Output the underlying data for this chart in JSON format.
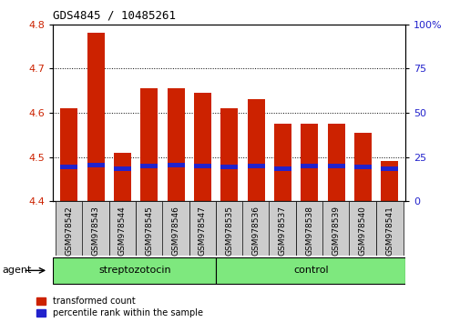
{
  "title": "GDS4845 / 10485261",
  "samples": [
    "GSM978542",
    "GSM978543",
    "GSM978544",
    "GSM978545",
    "GSM978546",
    "GSM978547",
    "GSM978535",
    "GSM978536",
    "GSM978537",
    "GSM978538",
    "GSM978539",
    "GSM978540",
    "GSM978541"
  ],
  "transformed_counts": [
    4.61,
    4.78,
    4.51,
    4.655,
    4.655,
    4.645,
    4.61,
    4.63,
    4.575,
    4.575,
    4.575,
    4.555,
    4.49
  ],
  "percentile_positions": [
    4.478,
    4.482,
    4.474,
    4.48,
    4.482,
    4.48,
    4.478,
    4.48,
    4.474,
    4.48,
    4.48,
    4.477,
    4.474
  ],
  "base_value": 4.4,
  "ylim_left": [
    4.4,
    4.8
  ],
  "ylim_right": [
    0,
    100
  ],
  "yticks_left": [
    4.4,
    4.5,
    4.6,
    4.7,
    4.8
  ],
  "yticks_right": [
    0,
    25,
    50,
    75,
    100
  ],
  "group_separator": 6,
  "bar_color_red": "#CC2200",
  "bar_color_blue": "#2222CC",
  "bar_width": 0.65,
  "tick_bg_color": "#CCCCCC",
  "left_axis_color": "#CC2200",
  "right_axis_color": "#2222CC",
  "legend_red_label": "transformed count",
  "legend_blue_label": "percentile rank within the sample",
  "agent_label": "agent",
  "blue_bar_height": 0.01,
  "grid_yticks": [
    4.5,
    4.6,
    4.7
  ],
  "right_tick_labels": [
    "0",
    "25",
    "50",
    "75",
    "100%"
  ]
}
